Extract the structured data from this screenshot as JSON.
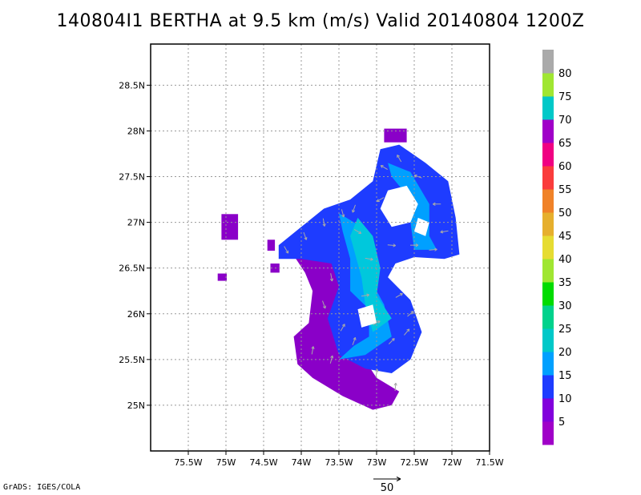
{
  "title": "140804I1 BERTHA at 9.5 km (m/s) Valid 20140804 1200Z",
  "credit": "GrADS: IGES/COLA",
  "vector_key_label": "50",
  "chart_data": {
    "type": "heatmap",
    "title": "140804I1 BERTHA at 9.5 km (m/s) Valid 20140804 1200Z",
    "variable": "wind speed (m/s) with wind vectors",
    "xlim": [
      -76.0,
      -71.5
    ],
    "ylim": [
      24.5,
      28.95
    ],
    "x_ticks": [
      -75.5,
      -75,
      -74.5,
      -74,
      -73.5,
      -73,
      -72.5,
      -72,
      -71.5
    ],
    "x_tick_labels": [
      "75.5W",
      "75W",
      "74.5W",
      "74W",
      "73.5W",
      "73W",
      "72.5W",
      "72W",
      "71.5W"
    ],
    "y_ticks": [
      25,
      25.5,
      26,
      26.5,
      27,
      27.5,
      28,
      28.5
    ],
    "y_tick_labels": [
      "25N",
      "25.5N",
      "26N",
      "26.5N",
      "27N",
      "27.5N",
      "28N",
      "28.5N"
    ],
    "grid": true,
    "colorbar": {
      "levels": [
        5,
        10,
        15,
        20,
        25,
        30,
        35,
        40,
        45,
        50,
        55,
        60,
        65,
        70,
        75,
        80
      ],
      "labels": [
        "5",
        "10",
        "15",
        "20",
        "25",
        "30",
        "35",
        "40",
        "45",
        "50",
        "55",
        "60",
        "65",
        "70",
        "75",
        "80"
      ],
      "colors": [
        "#a000c8",
        "#8200dc",
        "#1e3cff",
        "#00a0ff",
        "#00c8c8",
        "#00d28c",
        "#00dc00",
        "#a0e632",
        "#e6dc32",
        "#e6af2d",
        "#f08228",
        "#fa3c3c",
        "#f00082",
        "#a000c8",
        "#00c8c8",
        "#a0e632",
        "#aaaaaa"
      ]
    },
    "vector_reference": {
      "length_ms": 50
    }
  }
}
